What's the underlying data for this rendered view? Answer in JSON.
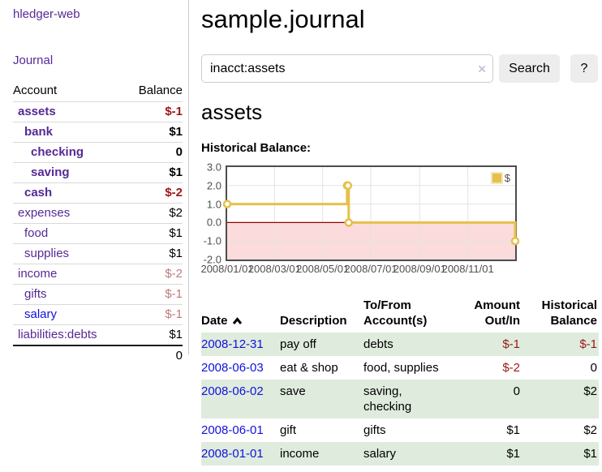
{
  "colors": {
    "purple_link": "#552a94",
    "blue_link": "#1111dd",
    "negative_strong": "#9d1616",
    "negative_muted": "#bd7b7b",
    "row_stripe_green": "#dfecdd",
    "series_gold": "#e6c04a",
    "negative_region_pink": "#fbdbdb",
    "zero_line_red": "#990000"
  },
  "sidebar": {
    "brand": "hledger-web",
    "journal_link": "Journal",
    "table": {
      "headers": {
        "account": "Account",
        "balance": "Balance"
      },
      "rows": [
        {
          "name": "assets",
          "balance": "$-1",
          "indent": 0,
          "bold": true,
          "balance_style": "strong",
          "link": "purple"
        },
        {
          "name": "bank",
          "balance": "$1",
          "indent": 1,
          "bold": true,
          "balance_style": "",
          "link": "purple"
        },
        {
          "name": "checking",
          "balance": "0",
          "indent": 2,
          "bold": true,
          "balance_style": "",
          "link": "purple"
        },
        {
          "name": "saving",
          "balance": "$1",
          "indent": 2,
          "bold": true,
          "balance_style": "",
          "link": "purple"
        },
        {
          "name": "cash",
          "balance": "$-2",
          "indent": 1,
          "bold": true,
          "balance_style": "strong",
          "link": "purple"
        },
        {
          "name": "expenses",
          "balance": "$2",
          "indent": 0,
          "bold": false,
          "balance_style": "",
          "link": "purple"
        },
        {
          "name": "food",
          "balance": "$1",
          "indent": 1,
          "bold": false,
          "balance_style": "",
          "link": "purple"
        },
        {
          "name": "supplies",
          "balance": "$1",
          "indent": 1,
          "bold": false,
          "balance_style": "",
          "link": "purple"
        },
        {
          "name": "income",
          "balance": "$-2",
          "indent": 0,
          "bold": false,
          "balance_style": "muted",
          "link": "purple"
        },
        {
          "name": "gifts",
          "balance": "$-1",
          "indent": 1,
          "bold": false,
          "balance_style": "muted",
          "link": "purple"
        },
        {
          "name": "salary",
          "balance": "$-1",
          "indent": 1,
          "bold": false,
          "balance_style": "muted",
          "link": "blue"
        },
        {
          "name": "liabilities:debts",
          "balance": "$1",
          "indent": 0,
          "bold": false,
          "balance_style": "",
          "link": "purple"
        }
      ],
      "total": "0"
    }
  },
  "main": {
    "title": "sample.journal",
    "search": {
      "value": "inacct:assets",
      "clear_icon": "×",
      "search_button": "Search",
      "help_button": "?"
    },
    "account_heading": "assets",
    "chart_label": "Historical Balance:"
  },
  "chart_data": {
    "type": "line",
    "step": true,
    "title": "Historical Balance:",
    "series": [
      {
        "name": "$",
        "color": "#e6c04a",
        "points": [
          [
            "2008-01-01",
            1
          ],
          [
            "2008-06-01",
            2
          ],
          [
            "2008-06-02",
            2
          ],
          [
            "2008-06-03",
            0
          ],
          [
            "2008-12-31",
            -1
          ]
        ]
      }
    ],
    "x_range": [
      "2008-01-01",
      "2008-12-31"
    ],
    "ylim": [
      -2,
      3
    ],
    "y_ticks": [
      "3.0",
      "2.0",
      "1.0",
      "0.0",
      "-1.0",
      "-2.0"
    ],
    "x_ticks": [
      "2008/01/01",
      "2008/03/01",
      "2008/05/01",
      "2008/07/01",
      "2008/09/01",
      "2008/11/01"
    ],
    "grid": true,
    "legend": {
      "label": "$",
      "position": "top-right"
    },
    "negative_region_color": "#fbdbdb",
    "zero_line_color": "#990000"
  },
  "register": {
    "headers": {
      "date": "Date",
      "description": "Description",
      "accounts": [
        "To/From",
        "Account(s)"
      ],
      "amount": [
        "Amount",
        "Out/In"
      ],
      "balance": [
        "Historical",
        "Balance"
      ]
    },
    "rows": [
      {
        "date": "2008-12-31",
        "description": "pay off",
        "accounts": "debts",
        "amount": "$-1",
        "amount_neg": true,
        "balance": "$-1",
        "balance_neg": true
      },
      {
        "date": "2008-06-03",
        "description": "eat & shop",
        "accounts": "food, supplies",
        "amount": "$-2",
        "amount_neg": true,
        "balance": "0",
        "balance_neg": false
      },
      {
        "date": "2008-06-02",
        "description": "save",
        "accounts": "saving, checking",
        "amount": "0",
        "amount_neg": false,
        "balance": "$2",
        "balance_neg": false
      },
      {
        "date": "2008-06-01",
        "description": "gift",
        "accounts": "gifts",
        "amount": "$1",
        "amount_neg": false,
        "balance": "$2",
        "balance_neg": false
      },
      {
        "date": "2008-01-01",
        "description": "income",
        "accounts": "salary",
        "amount": "$1",
        "amount_neg": false,
        "balance": "$1",
        "balance_neg": false
      }
    ]
  }
}
